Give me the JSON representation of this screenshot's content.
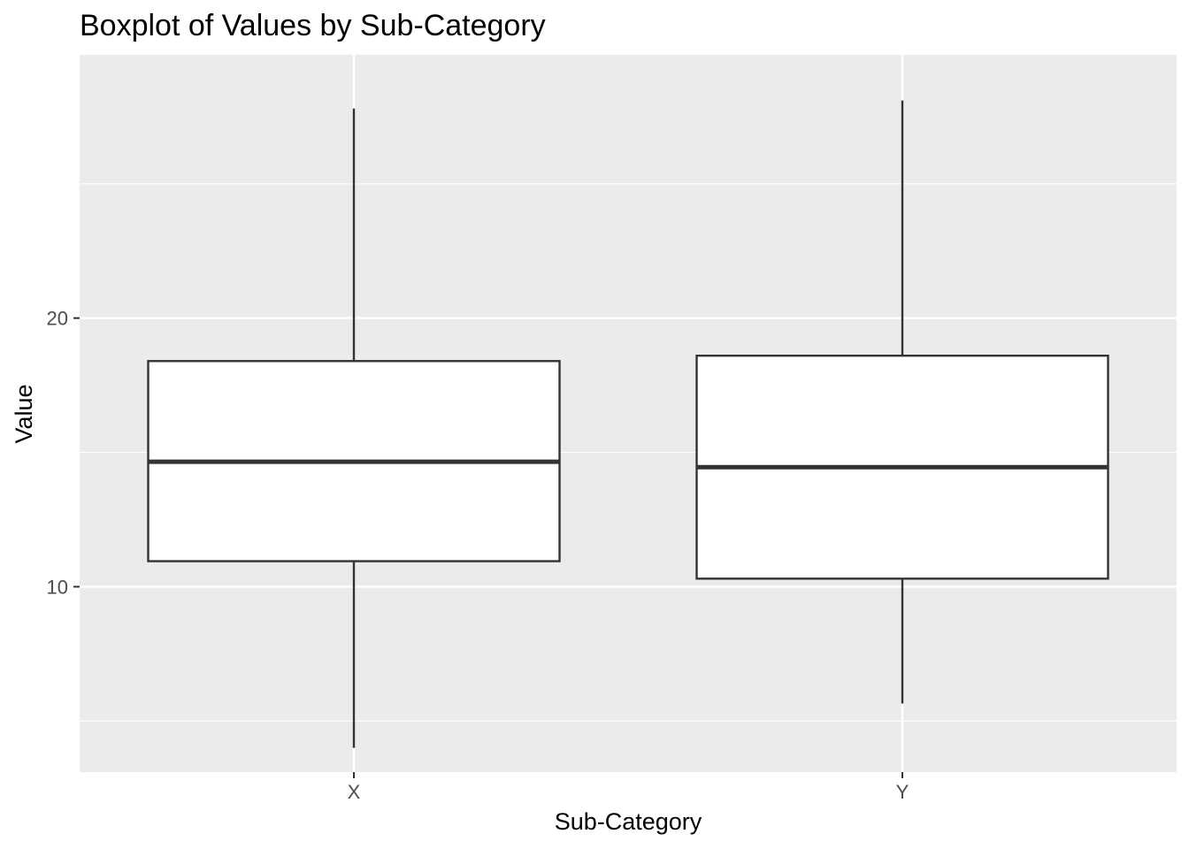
{
  "chart_data": {
    "type": "boxplot",
    "title": "Boxplot of Values by Sub-Category",
    "xlabel": "Sub-Category",
    "ylabel": "Value",
    "categories": [
      "X",
      "Y"
    ],
    "boxes": [
      {
        "category": "X",
        "whisker_low": 4.0,
        "q1": 10.95,
        "median": 14.65,
        "q3": 18.4,
        "whisker_high": 27.8
      },
      {
        "category": "Y",
        "whisker_low": 5.65,
        "q1": 10.3,
        "median": 14.45,
        "q3": 18.6,
        "whisker_high": 28.1
      }
    ],
    "ylim": [
      3.1,
      29.8
    ],
    "y_major_ticks": [
      10,
      20
    ],
    "y_minor_grid": [
      5,
      15,
      25
    ],
    "grid": true,
    "legend": "none",
    "colors": {
      "panel_background": "#ebebeb",
      "grid": "#ffffff",
      "box_fill": "#ffffff",
      "box_line": "#333333",
      "tick_text": "#4d4d4d"
    }
  }
}
